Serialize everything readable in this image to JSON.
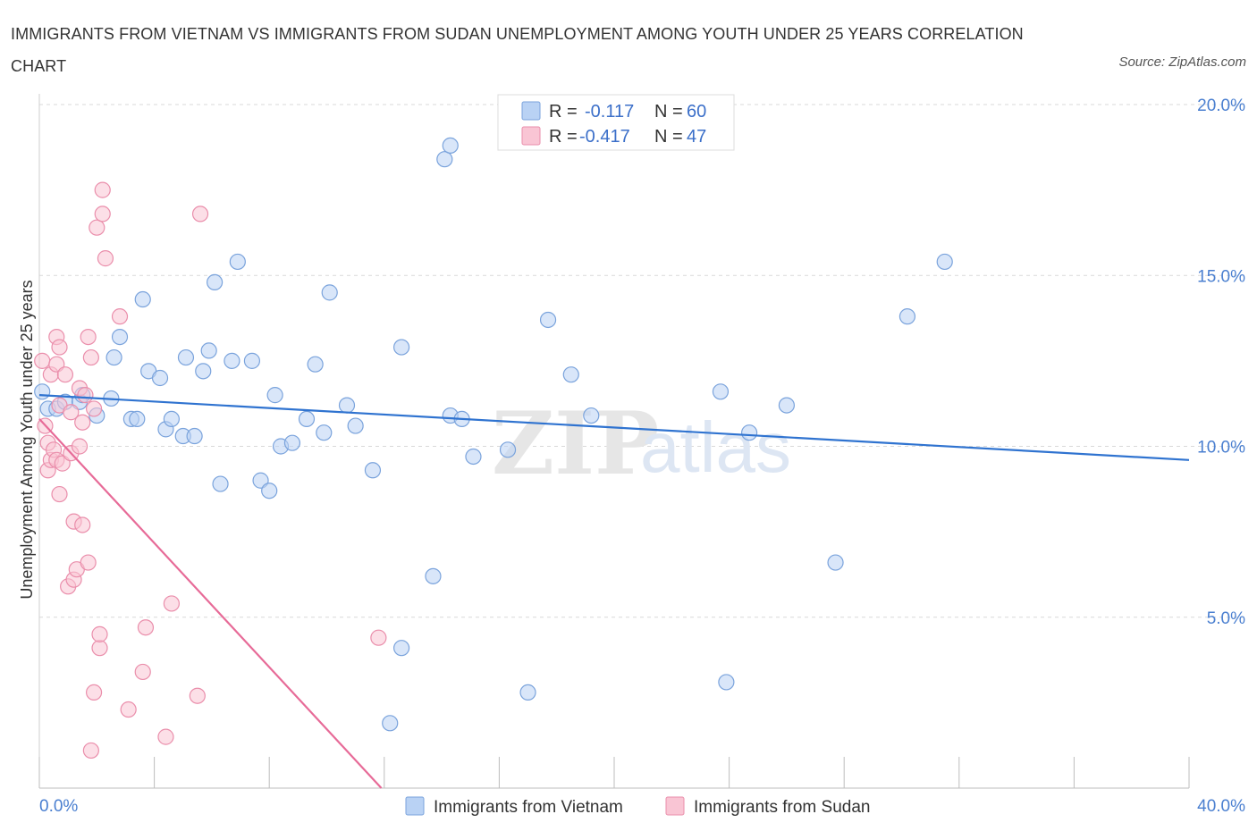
{
  "title": "IMMIGRANTS FROM VIETNAM VS IMMIGRANTS FROM SUDAN UNEMPLOYMENT AMONG YOUTH UNDER 25 YEARS CORRELATION CHART",
  "source": "Source: ZipAtlas.com",
  "watermark": {
    "zip": "ZIP",
    "atlas": "atlas"
  },
  "legend": {
    "r_label": "R =",
    "n_label": "N =",
    "rows": [
      {
        "r": "-0.117",
        "n": "60"
      },
      {
        "r": "-0.417",
        "n": "47"
      }
    ]
  },
  "chart_data": {
    "type": "scatter",
    "xlabel": "",
    "ylabel": "Unemployment Among Youth under 25 years",
    "xlim": [
      0,
      40
    ],
    "ylim": [
      0,
      20
    ],
    "x_tick_labels": {
      "min": "0.0%",
      "max": "40.0%"
    },
    "y_tick_labels": [
      "5.0%",
      "10.0%",
      "15.0%",
      "20.0%"
    ],
    "y_ticks": [
      5,
      10,
      15,
      20
    ],
    "colors": {
      "vietnam_fill": "#b9d2f4",
      "vietnam_stroke": "#7aa3dc",
      "vietnam_line": "#2f73d0",
      "sudan_fill": "#f9c5d4",
      "sudan_stroke": "#ea8eab",
      "sudan_line": "#e76b98"
    },
    "series": [
      {
        "name": "Immigrants from Vietnam",
        "r": -0.117,
        "n": 60,
        "trend": {
          "x": [
            0,
            40
          ],
          "y": [
            11.5,
            9.6
          ]
        },
        "points": [
          [
            0.1,
            11.6
          ],
          [
            0.3,
            11.1
          ],
          [
            0.6,
            11.1
          ],
          [
            0.9,
            11.3
          ],
          [
            1.4,
            11.3
          ],
          [
            1.5,
            11.5
          ],
          [
            2.0,
            10.9
          ],
          [
            2.5,
            11.4
          ],
          [
            2.6,
            12.6
          ],
          [
            2.8,
            13.2
          ],
          [
            3.2,
            10.8
          ],
          [
            3.4,
            10.8
          ],
          [
            3.6,
            14.3
          ],
          [
            3.8,
            12.2
          ],
          [
            4.2,
            12.0
          ],
          [
            4.4,
            10.5
          ],
          [
            4.6,
            10.8
          ],
          [
            5.0,
            10.3
          ],
          [
            5.1,
            12.6
          ],
          [
            5.4,
            10.3
          ],
          [
            5.7,
            12.2
          ],
          [
            5.9,
            12.8
          ],
          [
            6.1,
            14.8
          ],
          [
            6.3,
            8.9
          ],
          [
            6.7,
            12.5
          ],
          [
            6.9,
            15.4
          ],
          [
            7.4,
            12.5
          ],
          [
            7.7,
            9.0
          ],
          [
            8.0,
            8.7
          ],
          [
            8.2,
            11.5
          ],
          [
            8.4,
            10.0
          ],
          [
            8.8,
            10.1
          ],
          [
            9.3,
            10.8
          ],
          [
            9.6,
            12.4
          ],
          [
            9.9,
            10.4
          ],
          [
            10.1,
            14.5
          ],
          [
            10.7,
            11.2
          ],
          [
            11.0,
            10.6
          ],
          [
            11.6,
            9.3
          ],
          [
            12.2,
            1.9
          ],
          [
            12.6,
            12.9
          ],
          [
            12.6,
            4.1
          ],
          [
            13.7,
            6.2
          ],
          [
            14.1,
            18.4
          ],
          [
            14.3,
            18.8
          ],
          [
            14.3,
            10.9
          ],
          [
            14.7,
            10.8
          ],
          [
            15.1,
            9.7
          ],
          [
            16.3,
            9.9
          ],
          [
            17.0,
            2.8
          ],
          [
            17.7,
            13.7
          ],
          [
            18.5,
            12.1
          ],
          [
            19.2,
            10.9
          ],
          [
            23.7,
            11.6
          ],
          [
            23.9,
            3.1
          ],
          [
            24.7,
            10.4
          ],
          [
            26.0,
            11.2
          ],
          [
            27.7,
            6.6
          ],
          [
            30.2,
            13.8
          ],
          [
            31.5,
            15.4
          ]
        ]
      },
      {
        "name": "Immigrants from Sudan",
        "r": -0.417,
        "n": 47,
        "trend": {
          "x": [
            0,
            11.9
          ],
          "y": [
            10.8,
            0
          ]
        },
        "points": [
          [
            0.1,
            12.5
          ],
          [
            0.2,
            10.6
          ],
          [
            0.3,
            10.1
          ],
          [
            0.3,
            9.3
          ],
          [
            0.4,
            9.6
          ],
          [
            0.4,
            12.1
          ],
          [
            0.5,
            9.9
          ],
          [
            0.6,
            9.6
          ],
          [
            0.6,
            12.4
          ],
          [
            0.6,
            13.2
          ],
          [
            0.7,
            8.6
          ],
          [
            0.7,
            12.9
          ],
          [
            0.7,
            11.2
          ],
          [
            0.8,
            9.5
          ],
          [
            0.9,
            12.1
          ],
          [
            1.0,
            5.9
          ],
          [
            1.1,
            9.8
          ],
          [
            1.1,
            11.0
          ],
          [
            1.2,
            7.8
          ],
          [
            1.2,
            6.1
          ],
          [
            1.3,
            6.4
          ],
          [
            1.4,
            10.0
          ],
          [
            1.4,
            11.7
          ],
          [
            1.5,
            7.7
          ],
          [
            1.5,
            10.7
          ],
          [
            1.6,
            11.5
          ],
          [
            1.7,
            6.6
          ],
          [
            1.7,
            13.2
          ],
          [
            1.8,
            12.6
          ],
          [
            1.8,
            1.1
          ],
          [
            1.9,
            2.8
          ],
          [
            1.9,
            11.1
          ],
          [
            2.0,
            16.4
          ],
          [
            2.1,
            4.1
          ],
          [
            2.1,
            4.5
          ],
          [
            2.2,
            17.5
          ],
          [
            2.2,
            16.8
          ],
          [
            2.3,
            15.5
          ],
          [
            2.8,
            13.8
          ],
          [
            3.1,
            2.3
          ],
          [
            3.6,
            3.4
          ],
          [
            3.7,
            4.7
          ],
          [
            4.4,
            1.5
          ],
          [
            4.6,
            5.4
          ],
          [
            5.5,
            2.7
          ],
          [
            5.6,
            16.8
          ],
          [
            11.8,
            4.4
          ]
        ]
      }
    ]
  }
}
